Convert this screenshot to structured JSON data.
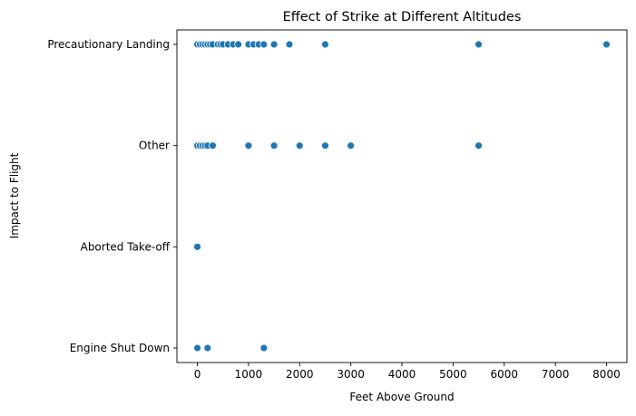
{
  "chart_data": {
    "type": "scatter",
    "title": "Effect of Strike at Different Altitudes",
    "xlabel": "Feet Above Ground",
    "ylabel": "Impact to Flight",
    "xlim": [
      -400,
      8400
    ],
    "x_ticks": [
      0,
      1000,
      2000,
      3000,
      4000,
      5000,
      6000,
      7000,
      8000
    ],
    "categories": [
      "Precautionary Landing",
      "Other",
      "Aborted Take-off",
      "Engine Shut Down"
    ],
    "grid": false,
    "legend": "none",
    "marker_color": "#1f77b4",
    "points": [
      {
        "x": 0,
        "y": "Precautionary Landing"
      },
      {
        "x": 50,
        "y": "Precautionary Landing"
      },
      {
        "x": 100,
        "y": "Precautionary Landing"
      },
      {
        "x": 150,
        "y": "Precautionary Landing"
      },
      {
        "x": 200,
        "y": "Precautionary Landing"
      },
      {
        "x": 250,
        "y": "Precautionary Landing"
      },
      {
        "x": 300,
        "y": "Precautionary Landing"
      },
      {
        "x": 400,
        "y": "Precautionary Landing"
      },
      {
        "x": 450,
        "y": "Precautionary Landing"
      },
      {
        "x": 500,
        "y": "Precautionary Landing"
      },
      {
        "x": 600,
        "y": "Precautionary Landing"
      },
      {
        "x": 700,
        "y": "Precautionary Landing"
      },
      {
        "x": 800,
        "y": "Precautionary Landing"
      },
      {
        "x": 1000,
        "y": "Precautionary Landing"
      },
      {
        "x": 1100,
        "y": "Precautionary Landing"
      },
      {
        "x": 1200,
        "y": "Precautionary Landing"
      },
      {
        "x": 1300,
        "y": "Precautionary Landing"
      },
      {
        "x": 1500,
        "y": "Precautionary Landing"
      },
      {
        "x": 1800,
        "y": "Precautionary Landing"
      },
      {
        "x": 2500,
        "y": "Precautionary Landing"
      },
      {
        "x": 5500,
        "y": "Precautionary Landing"
      },
      {
        "x": 8000,
        "y": "Precautionary Landing"
      },
      {
        "x": 0,
        "y": "Other"
      },
      {
        "x": 50,
        "y": "Other"
      },
      {
        "x": 100,
        "y": "Other"
      },
      {
        "x": 150,
        "y": "Other"
      },
      {
        "x": 200,
        "y": "Other"
      },
      {
        "x": 300,
        "y": "Other"
      },
      {
        "x": 1000,
        "y": "Other"
      },
      {
        "x": 1500,
        "y": "Other"
      },
      {
        "x": 2000,
        "y": "Other"
      },
      {
        "x": 2500,
        "y": "Other"
      },
      {
        "x": 3000,
        "y": "Other"
      },
      {
        "x": 5500,
        "y": "Other"
      },
      {
        "x": 0,
        "y": "Aborted Take-off"
      },
      {
        "x": 0,
        "y": "Engine Shut Down"
      },
      {
        "x": 200,
        "y": "Engine Shut Down"
      },
      {
        "x": 1300,
        "y": "Engine Shut Down"
      }
    ]
  }
}
